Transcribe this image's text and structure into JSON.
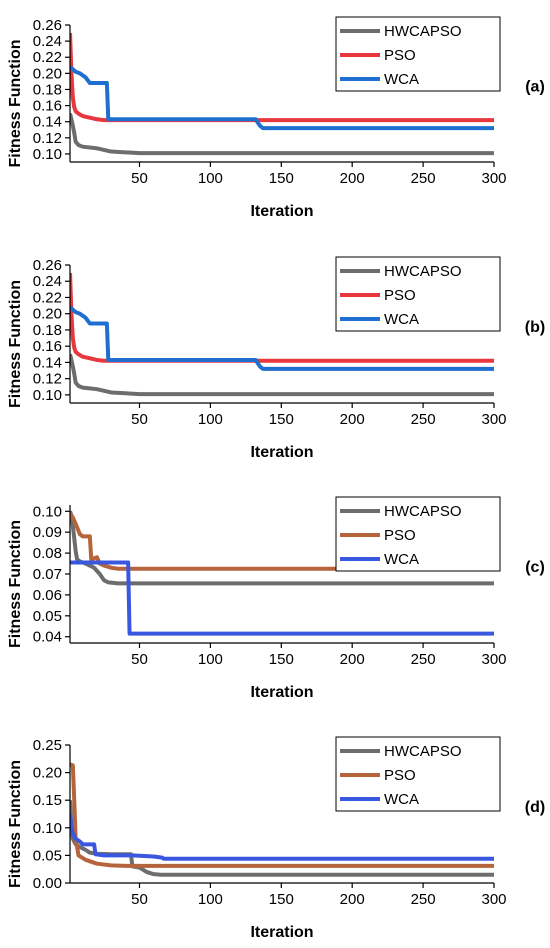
{
  "chart_data": [
    {
      "type": "line",
      "panel_label": "(a)",
      "xlabel": "Iteration",
      "ylabel": "Fitness Function",
      "xlim": [
        1,
        300
      ],
      "ylim": [
        0.09,
        0.26
      ],
      "xticks": [
        50,
        100,
        150,
        200,
        250,
        300
      ],
      "yticks": [
        0.1,
        0.12,
        0.14,
        0.16,
        0.18,
        0.2,
        0.22,
        0.24,
        0.26
      ],
      "ytick_decimals": 2,
      "grid": false,
      "legend_position": "top-right",
      "series": [
        {
          "name": "HWCAPSO",
          "color": "#6d6d6d",
          "points": [
            [
              1,
              0.15
            ],
            [
              2,
              0.143
            ],
            [
              3,
              0.135
            ],
            [
              4,
              0.126
            ],
            [
              5,
              0.115
            ],
            [
              7,
              0.111
            ],
            [
              10,
              0.109
            ],
            [
              15,
              0.108
            ],
            [
              20,
              0.107
            ],
            [
              25,
              0.105
            ],
            [
              30,
              0.103
            ],
            [
              40,
              0.102
            ],
            [
              50,
              0.101
            ],
            [
              300,
              0.101
            ]
          ]
        },
        {
          "name": "PSO",
          "color": "#e8373d",
          "points": [
            [
              1,
              0.25
            ],
            [
              2,
              0.2
            ],
            [
              3,
              0.17
            ],
            [
              4,
              0.158
            ],
            [
              5,
              0.153
            ],
            [
              7,
              0.15
            ],
            [
              10,
              0.147
            ],
            [
              15,
              0.145
            ],
            [
              20,
              0.143
            ],
            [
              25,
              0.142
            ],
            [
              30,
              0.142
            ],
            [
              300,
              0.142
            ]
          ]
        },
        {
          "name": "WCA",
          "color": "#1f6fd1",
          "points": [
            [
              1,
              0.208
            ],
            [
              3,
              0.205
            ],
            [
              5,
              0.202
            ],
            [
              8,
              0.2
            ],
            [
              12,
              0.195
            ],
            [
              15,
              0.188
            ],
            [
              27,
              0.188
            ],
            [
              28,
              0.143
            ],
            [
              132,
              0.143
            ],
            [
              133,
              0.14
            ],
            [
              135,
              0.135
            ],
            [
              137,
              0.132
            ],
            [
              300,
              0.132
            ]
          ]
        }
      ]
    },
    {
      "type": "line",
      "panel_label": "(b)",
      "xlabel": "Iteration",
      "ylabel": "Fitness Function",
      "xlim": [
        1,
        300
      ],
      "ylim": [
        0.09,
        0.26
      ],
      "xticks": [
        50,
        100,
        150,
        200,
        250,
        300
      ],
      "yticks": [
        0.1,
        0.12,
        0.14,
        0.16,
        0.18,
        0.2,
        0.22,
        0.24,
        0.26
      ],
      "ytick_decimals": 2,
      "grid": false,
      "legend_position": "top-right",
      "series": [
        {
          "name": "HWCAPSO",
          "color": "#6d6d6d",
          "points": [
            [
              1,
              0.15
            ],
            [
              2,
              0.143
            ],
            [
              3,
              0.135
            ],
            [
              4,
              0.126
            ],
            [
              5,
              0.115
            ],
            [
              7,
              0.111
            ],
            [
              10,
              0.109
            ],
            [
              15,
              0.108
            ],
            [
              20,
              0.107
            ],
            [
              25,
              0.105
            ],
            [
              30,
              0.103
            ],
            [
              40,
              0.102
            ],
            [
              50,
              0.101
            ],
            [
              300,
              0.101
            ]
          ]
        },
        {
          "name": "PSO",
          "color": "#e8373d",
          "points": [
            [
              1,
              0.25
            ],
            [
              2,
              0.2
            ],
            [
              3,
              0.17
            ],
            [
              4,
              0.158
            ],
            [
              5,
              0.153
            ],
            [
              7,
              0.15
            ],
            [
              10,
              0.147
            ],
            [
              15,
              0.145
            ],
            [
              20,
              0.143
            ],
            [
              25,
              0.142
            ],
            [
              30,
              0.142
            ],
            [
              300,
              0.142
            ]
          ]
        },
        {
          "name": "WCA",
          "color": "#1f6fd1",
          "points": [
            [
              1,
              0.208
            ],
            [
              3,
              0.205
            ],
            [
              5,
              0.202
            ],
            [
              8,
              0.2
            ],
            [
              12,
              0.195
            ],
            [
              15,
              0.188
            ],
            [
              27,
              0.188
            ],
            [
              28,
              0.143
            ],
            [
              132,
              0.143
            ],
            [
              133,
              0.14
            ],
            [
              135,
              0.135
            ],
            [
              137,
              0.132
            ],
            [
              300,
              0.132
            ]
          ]
        }
      ]
    },
    {
      "type": "line",
      "panel_label": "(c)",
      "xlabel": "Iteration",
      "ylabel": "Fitness Function",
      "xlim": [
        1,
        300
      ],
      "ylim": [
        0.037,
        0.103
      ],
      "xticks": [
        50,
        100,
        150,
        200,
        250,
        300
      ],
      "yticks": [
        0.04,
        0.05,
        0.06,
        0.07,
        0.08,
        0.09,
        0.1
      ],
      "ytick_decimals": 2,
      "grid": false,
      "legend_position": "top-right",
      "series": [
        {
          "name": "HWCAPSO",
          "color": "#6d6d6d",
          "points": [
            [
              1,
              0.1
            ],
            [
              2,
              0.098
            ],
            [
              3,
              0.093
            ],
            [
              4,
              0.087
            ],
            [
              5,
              0.081
            ],
            [
              6,
              0.077
            ],
            [
              8,
              0.076
            ],
            [
              12,
              0.075
            ],
            [
              18,
              0.073
            ],
            [
              22,
              0.07
            ],
            [
              25,
              0.067
            ],
            [
              28,
              0.066
            ],
            [
              35,
              0.0655
            ],
            [
              300,
              0.0655
            ]
          ]
        },
        {
          "name": "PSO",
          "color": "#b5643c",
          "points": [
            [
              1,
              0.099
            ],
            [
              2,
              0.098
            ],
            [
              3,
              0.097
            ],
            [
              5,
              0.094
            ],
            [
              8,
              0.089
            ],
            [
              10,
              0.088
            ],
            [
              15,
              0.088
            ],
            [
              16,
              0.077
            ],
            [
              20,
              0.078
            ],
            [
              22,
              0.075
            ],
            [
              25,
              0.074
            ],
            [
              30,
              0.073
            ],
            [
              35,
              0.0725
            ],
            [
              300,
              0.0725
            ]
          ]
        },
        {
          "name": "WCA",
          "color": "#3a57e0",
          "points": [
            [
              1,
              0.0755
            ],
            [
              42,
              0.0755
            ],
            [
              43,
              0.0415
            ],
            [
              300,
              0.0415
            ]
          ]
        }
      ]
    },
    {
      "type": "line",
      "panel_label": "(d)",
      "xlabel": "Iteration",
      "ylabel": "Fitness Function",
      "xlim": [
        1,
        300
      ],
      "ylim": [
        0,
        0.25
      ],
      "xticks": [
        50,
        100,
        150,
        200,
        250,
        300
      ],
      "yticks": [
        0.0,
        0.05,
        0.1,
        0.15,
        0.2,
        0.25
      ],
      "ytick_decimals": 2,
      "grid": false,
      "legend_position": "top-right",
      "series": [
        {
          "name": "HWCAPSO",
          "color": "#6d6d6d",
          "points": [
            [
              1,
              0.15
            ],
            [
              2,
              0.1
            ],
            [
              3,
              0.08
            ],
            [
              5,
              0.07
            ],
            [
              8,
              0.065
            ],
            [
              12,
              0.06
            ],
            [
              15,
              0.055
            ],
            [
              20,
              0.053
            ],
            [
              30,
              0.052
            ],
            [
              44,
              0.052
            ],
            [
              45,
              0.03
            ],
            [
              50,
              0.028
            ],
            [
              55,
              0.02
            ],
            [
              60,
              0.016
            ],
            [
              65,
              0.015
            ],
            [
              300,
              0.015
            ]
          ]
        },
        {
          "name": "PSO",
          "color": "#b5643c",
          "points": [
            [
              1,
              0.215
            ],
            [
              3,
              0.213
            ],
            [
              4,
              0.15
            ],
            [
              5,
              0.08
            ],
            [
              7,
              0.05
            ],
            [
              12,
              0.042
            ],
            [
              20,
              0.035
            ],
            [
              30,
              0.032
            ],
            [
              40,
              0.031
            ],
            [
              50,
              0.031
            ],
            [
              300,
              0.031
            ]
          ]
        },
        {
          "name": "WCA",
          "color": "#3a57e0",
          "points": [
            [
              1,
              0.125
            ],
            [
              2,
              0.1
            ],
            [
              3,
              0.09
            ],
            [
              5,
              0.08
            ],
            [
              8,
              0.075
            ],
            [
              10,
              0.07
            ],
            [
              18,
              0.07
            ],
            [
              19,
              0.052
            ],
            [
              25,
              0.05
            ],
            [
              45,
              0.05
            ],
            [
              60,
              0.048
            ],
            [
              66,
              0.046
            ],
            [
              67,
              0.044
            ],
            [
              300,
              0.044
            ]
          ]
        }
      ]
    }
  ]
}
